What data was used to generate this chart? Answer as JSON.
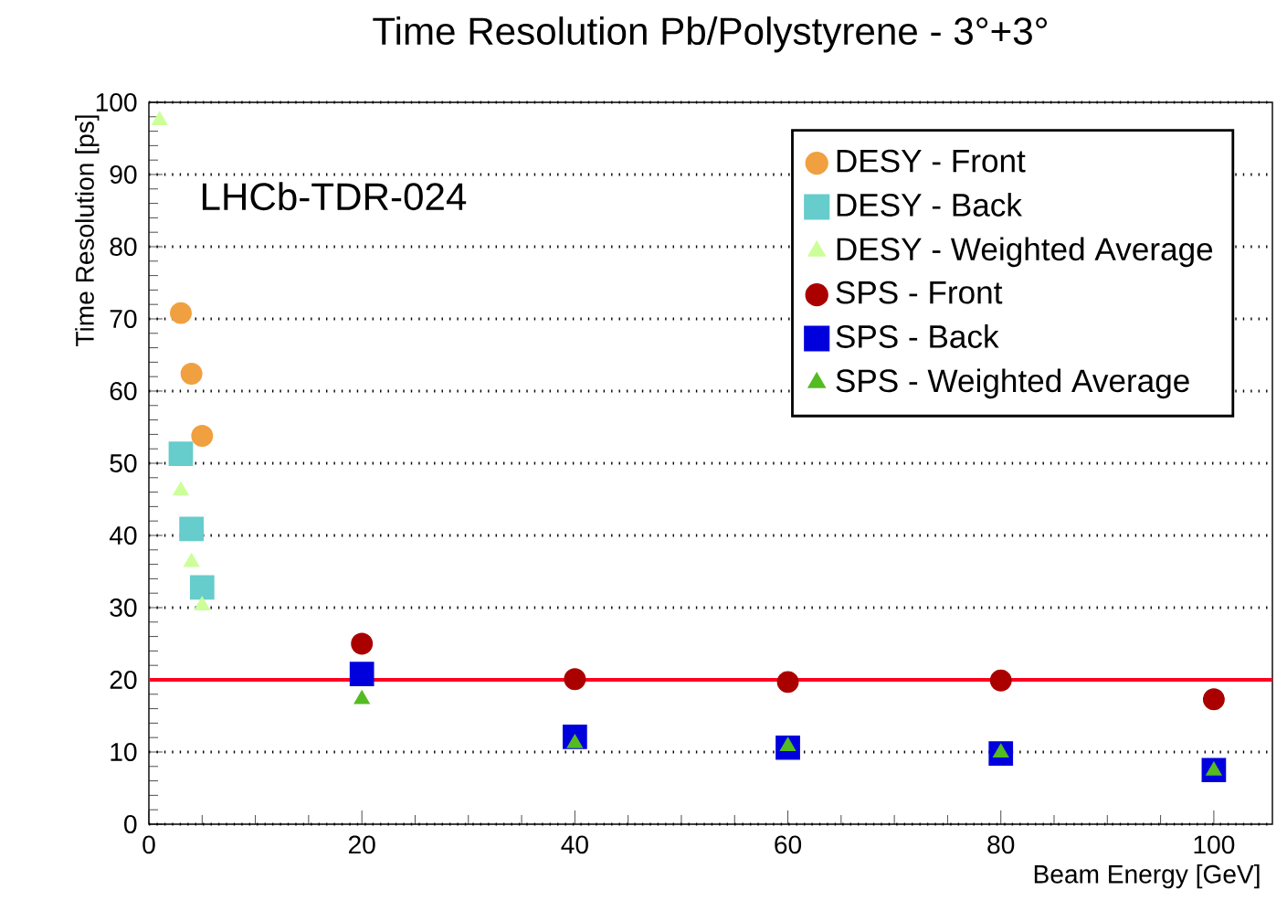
{
  "chart_data": {
    "type": "scatter",
    "title": "Time Resolution Pb/Polystyrene - 3°+3°",
    "xlabel": "Beam Energy [GeV]",
    "ylabel": "Time Resolution [ps]",
    "annotations": [
      "LHCb-TDR-024"
    ],
    "xlim": [
      0,
      105.5
    ],
    "ylim": [
      0,
      100
    ],
    "xticks": [
      0,
      20,
      40,
      60,
      80,
      100
    ],
    "yticks": [
      0,
      10,
      20,
      30,
      40,
      50,
      60,
      70,
      80,
      90,
      100
    ],
    "grid": "y",
    "legend": "top right",
    "ref_lines": [
      {
        "axis": "y",
        "value": 20,
        "color": "#ff0022"
      }
    ],
    "series": [
      {
        "name": "DESY - Front",
        "color": "#f0a040",
        "marker": "circle",
        "x": [
          3,
          4,
          5
        ],
        "values": [
          70.8,
          62.4,
          53.8
        ]
      },
      {
        "name": "DESY - Back",
        "color": "#66cccc",
        "marker": "square",
        "x": [
          3,
          4,
          5
        ],
        "values": [
          51.3,
          40.9,
          32.8
        ]
      },
      {
        "name": "DESY - Weighted Average",
        "color": "#ccff99",
        "marker": "triangle",
        "x": [
          1,
          3,
          4,
          5
        ],
        "values": [
          97.5,
          46.2,
          36.3,
          30.3
        ]
      },
      {
        "name": "SPS - Front",
        "color": "#aa0000",
        "marker": "circle",
        "x": [
          20,
          40,
          60,
          80,
          100
        ],
        "values": [
          25.0,
          20.1,
          19.7,
          19.9,
          17.3
        ]
      },
      {
        "name": "SPS - Back",
        "color": "#0000dd",
        "marker": "square",
        "x": [
          20,
          40,
          60,
          80,
          100
        ],
        "values": [
          20.8,
          12.1,
          10.6,
          9.8,
          7.5
        ]
      },
      {
        "name": "SPS - Weighted Average",
        "color": "#55bb22",
        "marker": "triangle",
        "x": [
          20,
          40,
          60,
          80,
          100
        ],
        "values": [
          17.3,
          11.2,
          10.8,
          9.9,
          7.4
        ]
      }
    ]
  }
}
